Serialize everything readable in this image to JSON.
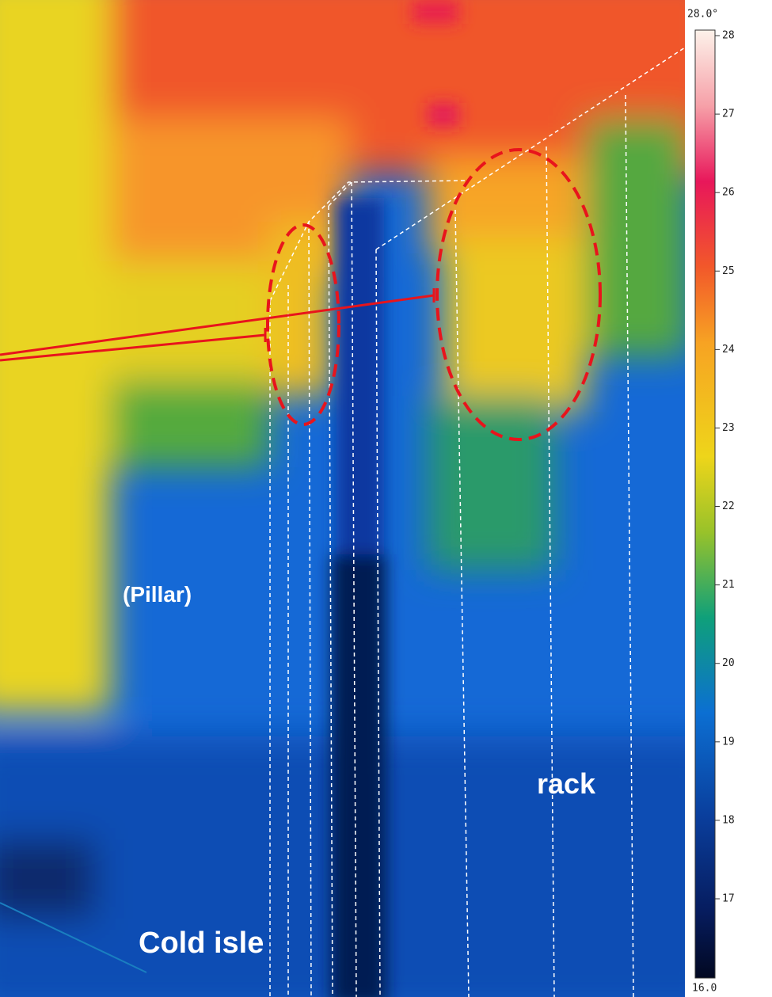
{
  "colorbar": {
    "max_label": "28.0°",
    "min_label": "16.0",
    "ticks": [
      28,
      27,
      26,
      25,
      24,
      23,
      22,
      21,
      20,
      19,
      18,
      17
    ]
  },
  "labels": {
    "pillar": "(Pillar)",
    "rack": "rack",
    "cold_aisle": "Cold isle"
  }
}
